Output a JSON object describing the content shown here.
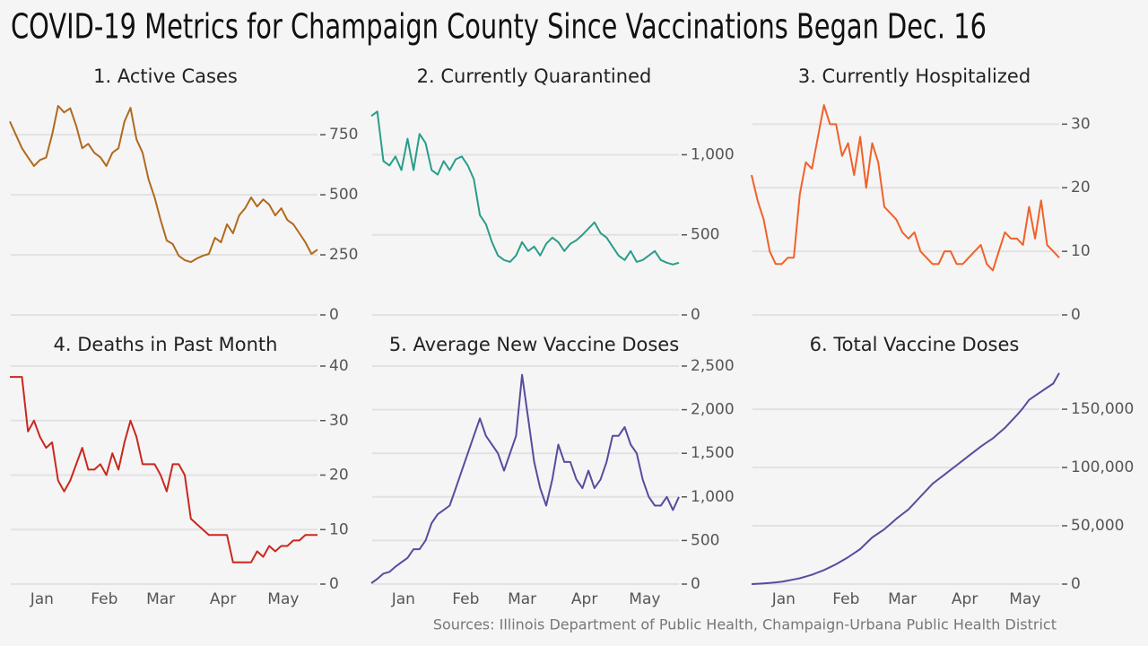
{
  "title": "COVID-19 Metrics for Champaign County Since Vaccinations Began Dec. 16",
  "source": "Sources: Illinois Department of Public Health, Champaign-Urbana Public Health District",
  "chart_data": [
    {
      "type": "line",
      "title": "1. Active Cases",
      "color": "#b06a1e",
      "x": [
        0,
        3,
        6,
        9,
        12,
        15,
        18,
        21,
        24,
        27,
        30,
        33,
        36,
        39,
        42,
        45,
        48,
        51,
        54,
        57,
        60,
        63,
        66,
        69,
        72,
        75,
        78,
        81,
        84,
        87,
        90,
        93,
        96,
        99,
        102,
        105,
        108,
        111,
        114,
        117,
        120,
        123,
        126,
        129,
        132,
        135,
        138,
        141,
        144,
        147,
        150,
        153
      ],
      "values": [
        805,
        750,
        694,
        656,
        620,
        645,
        655,
        750,
        870,
        843,
        860,
        787,
        694,
        712,
        675,
        656,
        620,
        675,
        694,
        805,
        862,
        731,
        675,
        563,
        489,
        395,
        310,
        295,
        246,
        228,
        220,
        235,
        246,
        254,
        321,
        302,
        377,
        340,
        414,
        444,
        489,
        451,
        481,
        459,
        414,
        444,
        395,
        377,
        340,
        302,
        254,
        272
      ],
      "xlim": [
        0,
        153
      ],
      "ylim": [
        0,
        900
      ],
      "yticks": [
        0,
        250,
        500,
        750
      ],
      "grid": true
    },
    {
      "type": "line",
      "title": "2. Currently Quarantined",
      "color": "#2a9d8a",
      "x": [
        0,
        3,
        6,
        9,
        12,
        15,
        18,
        21,
        24,
        27,
        30,
        33,
        36,
        39,
        42,
        45,
        48,
        51,
        54,
        57,
        60,
        63,
        66,
        69,
        72,
        75,
        78,
        81,
        84,
        87,
        90,
        93,
        96,
        99,
        102,
        105,
        108,
        111,
        114,
        117,
        120,
        123,
        126,
        129,
        132,
        135,
        138,
        141,
        144,
        147,
        150,
        153
      ],
      "values": [
        1242,
        1270,
        960,
        933,
        989,
        904,
        1100,
        904,
        1130,
        1073,
        904,
        876,
        960,
        904,
        972,
        989,
        933,
        848,
        623,
        567,
        455,
        371,
        343,
        331,
        371,
        455,
        399,
        427,
        371,
        444,
        483,
        455,
        399,
        444,
        466,
        500,
        539,
        578,
        511,
        483,
        427,
        371,
        343,
        399,
        331,
        343,
        371,
        399,
        343,
        326,
        315,
        326
      ],
      "xlim": [
        0,
        153
      ],
      "ylim": [
        0,
        1350
      ],
      "yticks": [
        0,
        500,
        {
          "value": 1000,
          "label": "1,000"
        }
      ],
      "grid": true
    },
    {
      "type": "line",
      "title": "3. Currently Hospitalized",
      "color": "#f0612a",
      "x": [
        0,
        3,
        6,
        9,
        12,
        15,
        18,
        21,
        24,
        27,
        30,
        33,
        36,
        39,
        42,
        45,
        48,
        51,
        54,
        57,
        60,
        63,
        66,
        69,
        72,
        75,
        78,
        81,
        84,
        87,
        90,
        93,
        96,
        99,
        102,
        105,
        108,
        111,
        114,
        117,
        120,
        123,
        126,
        129,
        132,
        135,
        138,
        141,
        144,
        147,
        150,
        153
      ],
      "values": [
        22,
        18,
        15,
        10,
        8,
        8,
        9,
        9,
        19,
        24,
        23,
        28,
        33,
        30,
        30,
        25,
        27,
        22,
        28,
        20,
        27,
        24,
        17,
        16,
        15,
        13,
        12,
        13,
        10,
        9,
        8,
        8,
        10,
        10,
        8,
        8,
        9,
        10,
        11,
        8,
        7,
        10,
        13,
        12,
        12,
        11,
        17,
        12,
        18,
        11,
        10,
        9
      ],
      "xlim": [
        0,
        153
      ],
      "ylim": [
        0,
        34
      ],
      "yticks": [
        0,
        10,
        20,
        30
      ],
      "grid": true
    },
    {
      "type": "line",
      "title": "4. Deaths in Past Month",
      "color": "#c9281e",
      "x": [
        0,
        3,
        6,
        9,
        12,
        15,
        18,
        21,
        24,
        27,
        30,
        33,
        36,
        39,
        42,
        45,
        48,
        51,
        54,
        57,
        60,
        63,
        66,
        69,
        72,
        75,
        78,
        81,
        84,
        87,
        90,
        93,
        96,
        99,
        102,
        105,
        108,
        111,
        114,
        117,
        120,
        123,
        126,
        129,
        132,
        135,
        138,
        141,
        144,
        147,
        150,
        153
      ],
      "values": [
        38,
        38,
        38,
        28,
        30,
        27,
        25,
        26,
        19,
        17,
        19,
        22,
        25,
        21,
        21,
        22,
        20,
        24,
        21,
        26,
        30,
        27,
        22,
        22,
        22,
        20,
        17,
        22,
        22,
        20,
        12,
        11,
        10,
        9,
        9,
        9,
        9,
        4,
        4,
        4,
        4,
        6,
        5,
        7,
        6,
        7,
        7,
        8,
        8,
        9,
        9,
        9
      ],
      "xlim": [
        0,
        153
      ],
      "ylim": [
        0,
        40
      ],
      "yticks": [
        0,
        10,
        20,
        30,
        40
      ],
      "xticks": [
        {
          "value": 16,
          "label": "Jan"
        },
        {
          "value": 47,
          "label": "Feb"
        },
        {
          "value": 75,
          "label": "Mar"
        },
        {
          "value": 106,
          "label": "Apr"
        },
        {
          "value": 136,
          "label": "May"
        }
      ],
      "grid": true
    },
    {
      "type": "line",
      "title": "5. Average New Vaccine Doses",
      "color": "#5b4a9e",
      "x": [
        0,
        3,
        6,
        9,
        12,
        15,
        18,
        21,
        24,
        27,
        30,
        33,
        36,
        39,
        42,
        45,
        48,
        51,
        54,
        57,
        60,
        63,
        66,
        69,
        72,
        75,
        78,
        81,
        84,
        87,
        90,
        93,
        96,
        99,
        102,
        105,
        108,
        111,
        114,
        117,
        120,
        123,
        126,
        129,
        132,
        135,
        138,
        141,
        144,
        147,
        150,
        153
      ],
      "values": [
        10,
        60,
        120,
        140,
        200,
        250,
        300,
        400,
        400,
        500,
        700,
        800,
        850,
        900,
        1100,
        1300,
        1500,
        1700,
        1900,
        1700,
        1600,
        1500,
        1300,
        1500,
        1700,
        2400,
        1900,
        1400,
        1100,
        900,
        1200,
        1600,
        1400,
        1400,
        1200,
        1100,
        1300,
        1100,
        1200,
        1400,
        1700,
        1700,
        1800,
        1600,
        1500,
        1200,
        1000,
        900,
        900,
        1000,
        850,
        1000
      ],
      "xlim": [
        0,
        153
      ],
      "ylim": [
        0,
        2500
      ],
      "yticks": [
        0,
        500,
        {
          "value": 1000,
          "label": "1,000"
        },
        {
          "value": 1500,
          "label": "1,500"
        },
        {
          "value": 2000,
          "label": "2,000"
        },
        {
          "value": 2500,
          "label": "2,500"
        }
      ],
      "xticks": [
        {
          "value": 16,
          "label": "Jan"
        },
        {
          "value": 47,
          "label": "Feb"
        },
        {
          "value": 75,
          "label": "Mar"
        },
        {
          "value": 106,
          "label": "Apr"
        },
        {
          "value": 136,
          "label": "May"
        }
      ],
      "grid": true
    },
    {
      "type": "line",
      "title": "6. Total Vaccine Doses",
      "color": "#5b4a9e",
      "x": [
        0,
        3,
        6,
        9,
        12,
        15,
        18,
        21,
        24,
        27,
        30,
        33,
        36,
        39,
        42,
        45,
        48,
        51,
        54,
        57,
        60,
        63,
        66,
        69,
        72,
        75,
        78,
        81,
        84,
        87,
        90,
        93,
        96,
        99,
        102,
        105,
        108,
        111,
        114,
        117,
        120,
        123,
        126,
        129,
        132,
        135,
        138,
        141,
        144,
        147,
        150,
        153
      ],
      "values": [
        0,
        300,
        600,
        1000,
        1500,
        2000,
        3000,
        4000,
        5000,
        6500,
        8000,
        10000,
        12000,
        14500,
        17000,
        20000,
        23000,
        26500,
        30000,
        35000,
        40000,
        43500,
        47000,
        51500,
        56000,
        60000,
        64000,
        69500,
        75000,
        80500,
        86000,
        90000,
        94000,
        98000,
        102000,
        106000,
        110000,
        114000,
        118000,
        121500,
        125000,
        129500,
        134000,
        139500,
        145000,
        151000,
        158000,
        161500,
        165000,
        168500,
        172000,
        181000
      ],
      "xlim": [
        0,
        153
      ],
      "ylim": [
        0,
        187000
      ],
      "yticks": [
        0,
        {
          "value": 50000,
          "label": "50,000"
        },
        {
          "value": 100000,
          "label": "100,000"
        },
        {
          "value": 150000,
          "label": "150,000"
        }
      ],
      "xticks": [
        {
          "value": 16,
          "label": "Jan"
        },
        {
          "value": 47,
          "label": "Feb"
        },
        {
          "value": 75,
          "label": "Mar"
        },
        {
          "value": 106,
          "label": "Apr"
        },
        {
          "value": 136,
          "label": "May"
        }
      ],
      "grid": true
    }
  ]
}
